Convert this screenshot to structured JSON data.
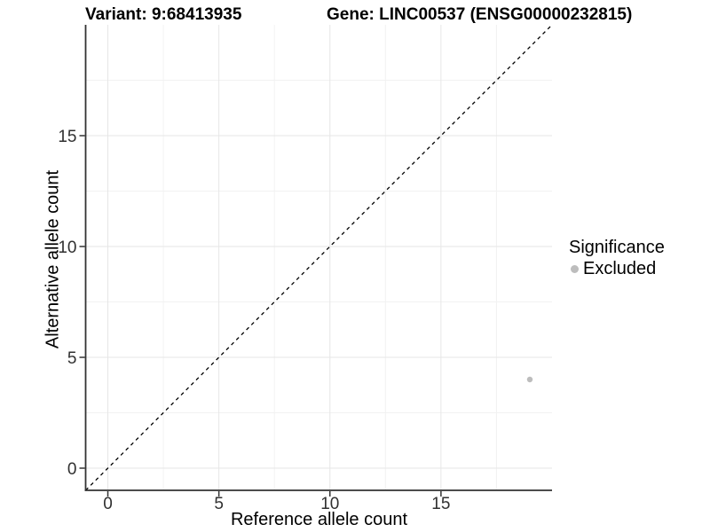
{
  "header": {
    "variant_title": "Variant: 9:68413935",
    "gene_title": "Gene: LINC00537 (ENSG00000232815)"
  },
  "chart_data": {
    "type": "scatter",
    "titles": {
      "left": "Variant: 9:68413935",
      "right": "Gene: LINC00537 (ENSG00000232815)"
    },
    "xlabel": "Reference allele count",
    "ylabel": "Alternative allele count",
    "xlim": [
      -1,
      20
    ],
    "ylim": [
      -1,
      20
    ],
    "x_breaks": [
      0,
      5,
      10,
      15
    ],
    "y_breaks": [
      0,
      5,
      10,
      15
    ],
    "x_minor_breaks": [
      2.5,
      7.5,
      12.5,
      17.5
    ],
    "y_minor_breaks": [
      2.5,
      7.5,
      12.5,
      17.5
    ],
    "grid": true,
    "reference_line": {
      "style": "dashed",
      "equation": "y = x",
      "from": [
        -1,
        -1
      ],
      "to": [
        20,
        20
      ],
      "color": "#000000"
    },
    "points": [
      {
        "x": 19,
        "y": 4,
        "significance": "Excluded",
        "color": "#bdbdbd"
      }
    ],
    "legend": {
      "title": "Significance",
      "position": "right",
      "items": [
        {
          "label": "Excluded",
          "color": "#bdbdbd",
          "marker": "circle"
        }
      ]
    },
    "colors": {
      "axis_line": "#333333",
      "tick_text": "#303030",
      "grid_major": "#e6e6e6",
      "grid_minor": "#f2f2f2",
      "background": "#ffffff"
    }
  }
}
